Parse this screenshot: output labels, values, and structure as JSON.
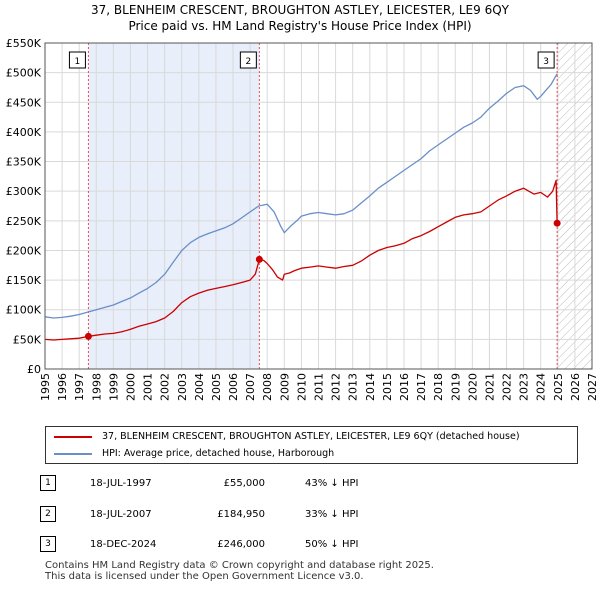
{
  "title_line1": "37, BLENHEIM CRESCENT, BROUGHTON ASTLEY, LEICESTER, LE9 6QY",
  "title_line2": "Price paid vs. HM Land Registry's House Price Index (HPI)",
  "colors": {
    "price_line": "#cc0000",
    "hpi_line": "#6a8fc8",
    "shade": "#e8eefa",
    "grid": "#d9d9d9",
    "marker_line": "#e05050"
  },
  "chart_data": {
    "type": "line",
    "title": "Price paid vs. HM Land Registry's House Price Index (HPI)",
    "xlabel": "",
    "ylabel": "",
    "xlim": [
      1995,
      2027
    ],
    "ylim": [
      0,
      550000
    ],
    "x_ticks": [
      1995,
      1996,
      1997,
      1998,
      1999,
      2000,
      2001,
      2002,
      2003,
      2004,
      2005,
      2006,
      2007,
      2008,
      2009,
      2010,
      2011,
      2012,
      2013,
      2014,
      2015,
      2016,
      2017,
      2018,
      2019,
      2020,
      2021,
      2022,
      2023,
      2024,
      2025,
      2026,
      2027
    ],
    "y_ticks": [
      0,
      50000,
      100000,
      150000,
      200000,
      250000,
      300000,
      350000,
      400000,
      450000,
      500000,
      550000
    ],
    "y_tick_labels": [
      "£0",
      "£50K",
      "£100K",
      "£150K",
      "£200K",
      "£250K",
      "£300K",
      "£350K",
      "£400K",
      "£450K",
      "£500K",
      "£550K"
    ],
    "series": [
      {
        "name": "37, BLENHEIM CRESCENT, BROUGHTON ASTLEY, LEICESTER, LE9 6QY (detached house)",
        "color": "#cc0000",
        "x": [
          1995.0,
          1995.5,
          1996.0,
          1996.5,
          1997.0,
          1997.54,
          1998.0,
          1998.5,
          1999.0,
          1999.5,
          2000.0,
          2000.5,
          2001.0,
          2001.5,
          2002.0,
          2002.5,
          2003.0,
          2003.5,
          2004.0,
          2004.5,
          2005.0,
          2005.5,
          2006.0,
          2006.5,
          2007.0,
          2007.3,
          2007.54,
          2007.8,
          2008.0,
          2008.3,
          2008.6,
          2008.9,
          2009.0,
          2009.3,
          2009.6,
          2010.0,
          2010.5,
          2011.0,
          2011.5,
          2012.0,
          2012.5,
          2013.0,
          2013.5,
          2014.0,
          2014.5,
          2015.0,
          2015.5,
          2016.0,
          2016.5,
          2017.0,
          2017.5,
          2018.0,
          2018.5,
          2019.0,
          2019.5,
          2020.0,
          2020.5,
          2021.0,
          2021.5,
          2022.0,
          2022.5,
          2023.0,
          2023.3,
          2023.6,
          2024.0,
          2024.4,
          2024.7,
          2024.9,
          2024.96
        ],
        "values": [
          50000,
          49000,
          50000,
          51000,
          52000,
          55000,
          57000,
          59000,
          60000,
          63000,
          67000,
          72000,
          76000,
          80000,
          86000,
          97000,
          112000,
          122000,
          128000,
          133000,
          136000,
          139000,
          142000,
          146000,
          150000,
          160000,
          184950,
          183000,
          178000,
          168000,
          155000,
          150000,
          160000,
          162000,
          166000,
          170000,
          172000,
          174000,
          172000,
          170000,
          173000,
          175000,
          182000,
          192000,
          200000,
          205000,
          208000,
          212000,
          220000,
          225000,
          232000,
          240000,
          248000,
          256000,
          260000,
          262000,
          265000,
          275000,
          285000,
          292000,
          300000,
          305000,
          300000,
          295000,
          298000,
          290000,
          300000,
          318000,
          246000
        ]
      },
      {
        "name": "HPI: Average price, detached house, Harborough",
        "color": "#6a8fc8",
        "x": [
          1995.0,
          1995.5,
          1996.0,
          1996.5,
          1997.0,
          1997.5,
          1998.0,
          1998.5,
          1999.0,
          1999.5,
          2000.0,
          2000.5,
          2001.0,
          2001.5,
          2002.0,
          2002.5,
          2003.0,
          2003.5,
          2004.0,
          2004.5,
          2005.0,
          2005.5,
          2006.0,
          2006.5,
          2007.0,
          2007.5,
          2008.0,
          2008.4,
          2008.8,
          2009.0,
          2009.4,
          2009.8,
          2010.0,
          2010.5,
          2011.0,
          2011.5,
          2012.0,
          2012.5,
          2013.0,
          2013.5,
          2014.0,
          2014.5,
          2015.0,
          2015.5,
          2016.0,
          2016.5,
          2017.0,
          2017.5,
          2018.0,
          2018.5,
          2019.0,
          2019.5,
          2020.0,
          2020.5,
          2021.0,
          2021.5,
          2022.0,
          2022.5,
          2023.0,
          2023.4,
          2023.8,
          2024.0,
          2024.3,
          2024.6,
          2024.96
        ],
        "values": [
          88000,
          86000,
          87000,
          89000,
          92000,
          96000,
          100000,
          104000,
          108000,
          114000,
          120000,
          128000,
          136000,
          146000,
          160000,
          180000,
          200000,
          213000,
          222000,
          228000,
          233000,
          238000,
          245000,
          255000,
          265000,
          275000,
          278000,
          265000,
          240000,
          230000,
          242000,
          252000,
          258000,
          262000,
          264000,
          262000,
          260000,
          262000,
          268000,
          280000,
          292000,
          305000,
          315000,
          325000,
          335000,
          345000,
          355000,
          368000,
          378000,
          388000,
          398000,
          408000,
          415000,
          425000,
          440000,
          452000,
          465000,
          475000,
          478000,
          470000,
          455000,
          460000,
          470000,
          480000,
          498000
        ]
      }
    ],
    "sales": [
      {
        "n": "1",
        "x": 1997.54,
        "price": 55000
      },
      {
        "n": "2",
        "x": 2007.54,
        "price": 184950
      },
      {
        "n": "3",
        "x": 2024.96,
        "price": 246000
      }
    ],
    "shaded_range": [
      1997.54,
      2007.54
    ],
    "hatched_range": [
      2025.0,
      2027.0
    ]
  },
  "legend": {
    "price_label": "37, BLENHEIM CRESCENT, BROUGHTON ASTLEY, LEICESTER, LE9 6QY (detached house)",
    "hpi_label": "HPI: Average price, detached house, Harborough"
  },
  "sales_table": [
    {
      "n": "1",
      "date": "18-JUL-1997",
      "price": "£55,000",
      "hpi": "43% ↓ HPI"
    },
    {
      "n": "2",
      "date": "18-JUL-2007",
      "price": "£184,950",
      "hpi": "33% ↓ HPI"
    },
    {
      "n": "3",
      "date": "18-DEC-2024",
      "price": "£246,000",
      "hpi": "50% ↓ HPI"
    }
  ],
  "footer_line1": "Contains HM Land Registry data © Crown copyright and database right 2025.",
  "footer_line2": "This data is licensed under the Open Government Licence v3.0."
}
